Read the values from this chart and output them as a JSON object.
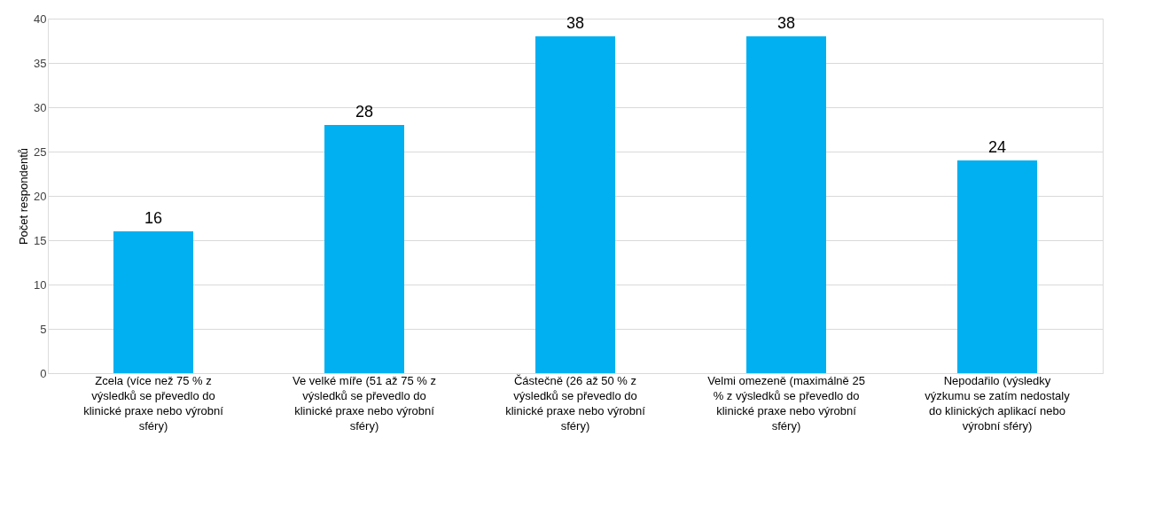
{
  "chart_data": {
    "type": "bar",
    "ylabel": "Počet respondentů",
    "categories": [
      "Zcela (více než 75 % z výsledků se převedlo do klinické praxe nebo výrobní sféry)",
      "Ve velké míře (51 až 75 % z výsledků se převedlo do klinické praxe nebo výrobní sféry)",
      "Částečně (26 až 50 % z výsledků se převedlo do klinické praxe nebo výrobní sféry)",
      "Velmi omezeně (maximálně 25 % z výsledků se převedlo do klinické praxe nebo výrobní sféry)",
      "Nepodařilo (výsledky výzkumu se zatím nedostaly do klinických aplikací nebo výrobní sféry)"
    ],
    "values": [
      16,
      28,
      38,
      38,
      24
    ],
    "color": "#00b0f0",
    "ylim": [
      0,
      40
    ],
    "yticks": [
      0,
      5,
      10,
      15,
      20,
      25,
      30,
      35,
      40
    ],
    "grid": "y",
    "data_labels": true
  }
}
